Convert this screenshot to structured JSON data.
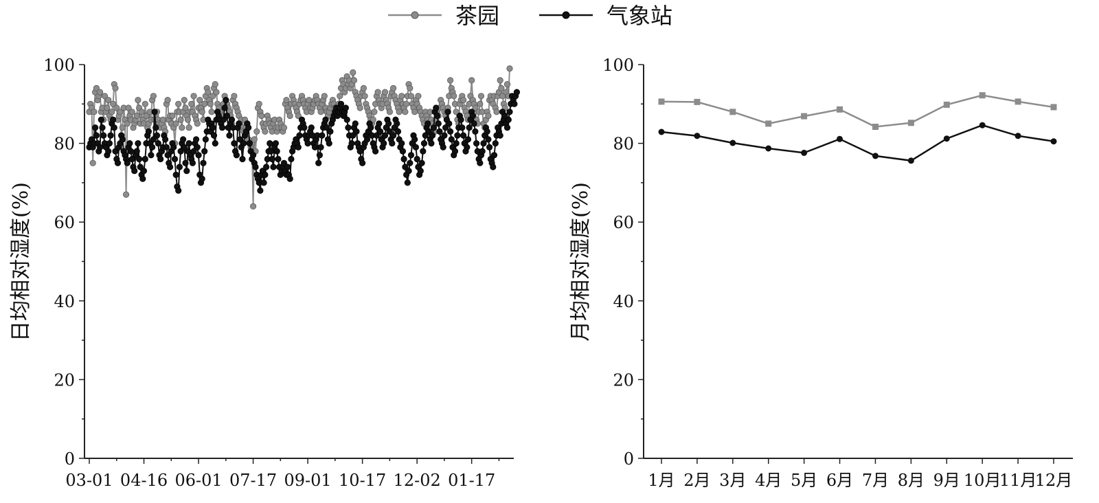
{
  "legend": {
    "position": "top-center",
    "items": [
      {
        "label": "茶园",
        "color": "#7f7f7f"
      },
      {
        "label": "气象站",
        "color": "#111111"
      }
    ]
  },
  "chart_data": [
    {
      "type": "line",
      "ylabel": "日均相对湿度(%)",
      "xlabel": "",
      "ylim": [
        0,
        100
      ],
      "yticks": [
        0,
        20,
        40,
        60,
        80,
        100
      ],
      "xticklabels": [
        "03-01",
        "04-16",
        "06-01",
        "07-17",
        "09-01",
        "10-17",
        "12-02",
        "01-17"
      ],
      "marker": "sphere",
      "series": [
        {
          "name": "茶园",
          "color": "#8c8c8c",
          "values": [
            88,
            90,
            89,
            75,
            88,
            93,
            94,
            91,
            92,
            93,
            88,
            89,
            86,
            92,
            88,
            89,
            91,
            87,
            86,
            88,
            90,
            95,
            94,
            89,
            86,
            87,
            88,
            82,
            84,
            89,
            86,
            67,
            85,
            89,
            87,
            86,
            88,
            84,
            85,
            86,
            87,
            91,
            89,
            85,
            88,
            86,
            85,
            90,
            87,
            84,
            85,
            88,
            86,
            91,
            92,
            86,
            87,
            88,
            86,
            85,
            84,
            85,
            86,
            84,
            83,
            90,
            91,
            86,
            87,
            85,
            87,
            84,
            80,
            85,
            88,
            90,
            88,
            86,
            84,
            88,
            91,
            89,
            87,
            86,
            84,
            88,
            90,
            88,
            92,
            87,
            86,
            85,
            89,
            91,
            89,
            88,
            86,
            90,
            92,
            94,
            93,
            91,
            90,
            88,
            92,
            94,
            95,
            93,
            90,
            89,
            88,
            87,
            86,
            90,
            92,
            91,
            90,
            89,
            88,
            87,
            85,
            91,
            92,
            90,
            89,
            88,
            87,
            85,
            86,
            84,
            83,
            86,
            84,
            85,
            81,
            80,
            79,
            80,
            64,
            81,
            78,
            83,
            89,
            90,
            88,
            87,
            85,
            84,
            83,
            85,
            87,
            86,
            85,
            84,
            83,
            85,
            86,
            84,
            83,
            84,
            86,
            85,
            84,
            83,
            84,
            90,
            91,
            89,
            88,
            87,
            90,
            92,
            91,
            90,
            89,
            88,
            87,
            90,
            91,
            92,
            91,
            90,
            89,
            88,
            90,
            91,
            89,
            88,
            89,
            90,
            91,
            92,
            91,
            90,
            89,
            88,
            90,
            91,
            92,
            89,
            88,
            87,
            88,
            89,
            90,
            91,
            90,
            89,
            88,
            89,
            90,
            92,
            94,
            96,
            95,
            93,
            94,
            97,
            95,
            96,
            94,
            95,
            98,
            96,
            93,
            92,
            91,
            90,
            89,
            92,
            93,
            94,
            92,
            90,
            89,
            88,
            87,
            86,
            85,
            86,
            88,
            90,
            92,
            93,
            91,
            90,
            89,
            90,
            92,
            93,
            91,
            90,
            89,
            88,
            92,
            93,
            94,
            92,
            91,
            90,
            89,
            88,
            91,
            92,
            90,
            89,
            88,
            90,
            92,
            95,
            94,
            92,
            90,
            89,
            88,
            91,
            90,
            92,
            89,
            88,
            87,
            86,
            85,
            88,
            87,
            86,
            85,
            88,
            86,
            85,
            84,
            83,
            86,
            88,
            87,
            89,
            91,
            90,
            89,
            88,
            87,
            88,
            89,
            92,
            96,
            94,
            93,
            92,
            90,
            88,
            86,
            85,
            90,
            91,
            92,
            91,
            89,
            88,
            87,
            86,
            90,
            92,
            96,
            91,
            90,
            89,
            86,
            85,
            88,
            90,
            92,
            88,
            85,
            84,
            86,
            88,
            87,
            91,
            92,
            91,
            90,
            92,
            89,
            88,
            92,
            93,
            96,
            94,
            92,
            90,
            89,
            93,
            95,
            92,
            99
          ]
        },
        {
          "name": "气象站",
          "color": "#111111",
          "values": [
            79,
            80,
            81,
            79,
            80,
            84,
            82,
            80,
            78,
            79,
            86,
            84,
            82,
            80,
            79,
            77,
            78,
            80,
            82,
            85,
            86,
            84,
            78,
            76,
            75,
            79,
            80,
            82,
            81,
            78,
            77,
            76,
            75,
            79,
            80,
            78,
            76,
            74,
            73,
            77,
            78,
            80,
            76,
            74,
            72,
            71,
            73,
            76,
            80,
            82,
            83,
            80,
            77,
            79,
            81,
            88,
            84,
            82,
            80,
            77,
            76,
            78,
            79,
            82,
            81,
            79,
            77,
            75,
            74,
            78,
            80,
            79,
            76,
            72,
            69,
            68,
            74,
            78,
            80,
            81,
            79,
            75,
            73,
            78,
            80,
            77,
            76,
            75,
            78,
            80,
            81,
            79,
            77,
            72,
            70,
            71,
            75,
            78,
            81,
            83,
            86,
            85,
            83,
            85,
            84,
            82,
            80,
            86,
            88,
            87,
            86,
            85,
            84,
            86,
            89,
            91,
            87,
            84,
            82,
            85,
            86,
            84,
            80,
            78,
            77,
            84,
            85,
            81,
            79,
            76,
            80,
            82,
            83,
            85,
            84,
            80,
            78,
            76,
            77,
            75,
            74,
            72,
            71,
            70,
            68,
            72,
            73,
            70,
            72,
            74,
            76,
            78,
            80,
            78,
            76,
            74,
            79,
            80,
            78,
            76,
            74,
            72,
            73,
            74,
            75,
            73,
            72,
            74,
            72,
            71,
            76,
            78,
            79,
            80,
            81,
            80,
            79,
            82,
            84,
            86,
            85,
            84,
            82,
            81,
            80,
            82,
            83,
            84,
            82,
            80,
            79,
            81,
            82,
            75,
            77,
            79,
            82,
            84,
            85,
            86,
            84,
            81,
            80,
            83,
            85,
            86,
            87,
            88,
            89,
            87,
            88,
            89,
            90,
            88,
            87,
            88,
            89,
            86,
            84,
            82,
            79,
            80,
            82,
            84,
            85,
            83,
            80,
            79,
            78,
            76,
            75,
            79,
            80,
            82,
            81,
            83,
            85,
            84,
            82,
            80,
            79,
            78,
            82,
            84,
            85,
            83,
            81,
            79,
            80,
            82,
            84,
            86,
            85,
            83,
            81,
            80,
            82,
            84,
            86,
            85,
            83,
            81,
            79,
            80,
            78,
            76,
            74,
            72,
            70,
            73,
            75,
            77,
            80,
            82,
            81,
            79,
            76,
            74,
            72,
            73,
            75,
            78,
            80,
            82,
            84,
            85,
            83,
            81,
            80,
            82,
            84,
            88,
            89,
            87,
            85,
            83,
            81,
            80,
            79,
            82,
            84,
            86,
            88,
            85,
            83,
            81,
            79,
            77,
            78,
            80,
            82,
            84,
            87,
            86,
            84,
            82,
            80,
            78,
            79,
            81,
            84,
            86,
            88,
            87,
            85,
            83,
            80,
            78,
            76,
            75,
            77,
            78,
            80,
            82,
            84,
            83,
            81,
            79,
            76,
            75,
            74,
            77,
            80,
            82,
            84,
            83,
            82,
            85,
            88,
            86,
            87,
            85,
            84,
            86,
            88,
            90,
            92,
            91,
            90,
            92,
            93
          ]
        }
      ]
    },
    {
      "type": "line",
      "ylabel": "月均相对湿度(%)",
      "xlabel": "",
      "ylim": [
        0,
        100
      ],
      "yticks": [
        0,
        20,
        40,
        60,
        80,
        100
      ],
      "categories": [
        "1月",
        "2月",
        "3月",
        "4月",
        "5月",
        "6月",
        "7月",
        "8月",
        "9月",
        "10月",
        "11月",
        "12月"
      ],
      "series": [
        {
          "name": "茶园",
          "color": "#8c8c8c",
          "marker": "square",
          "values": [
            90.6,
            90.5,
            88.0,
            85.0,
            86.9,
            88.6,
            84.2,
            85.2,
            89.8,
            92.2,
            90.6,
            89.2
          ]
        },
        {
          "name": "气象站",
          "color": "#111111",
          "marker": "circle",
          "values": [
            82.9,
            81.9,
            80.1,
            78.7,
            77.6,
            81.1,
            76.8,
            75.6,
            81.2,
            84.6,
            81.9,
            80.5
          ]
        }
      ]
    }
  ]
}
